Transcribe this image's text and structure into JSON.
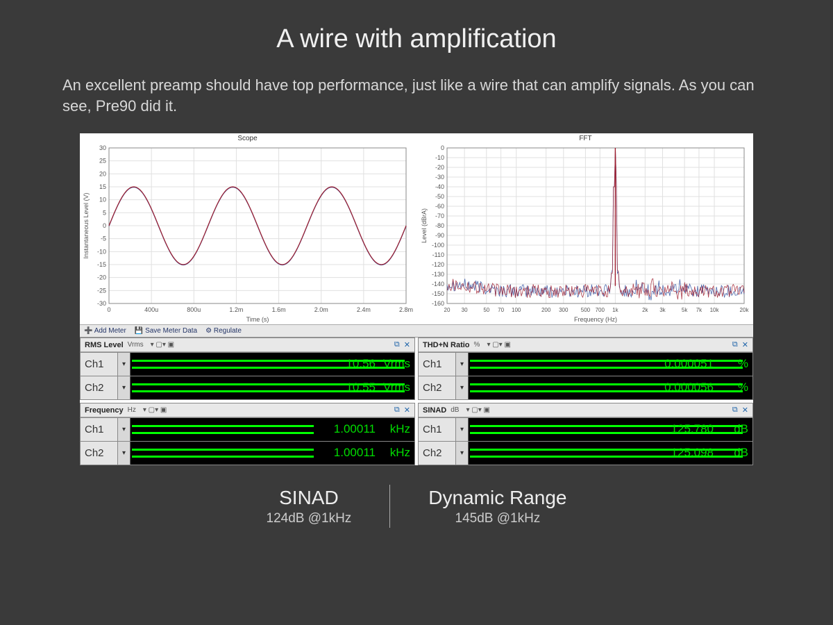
{
  "title": "A wire with amplification",
  "subtitle": "An excellent preamp should have top performance, just like a wire that can amplify signals. As you can see, Pre90 did it.",
  "scope_chart": {
    "type": "line",
    "title": "Scope",
    "xlabel": "Time (s)",
    "ylabel": "Instantaneous Level (V)",
    "ylim": [
      -30,
      30
    ],
    "ytick_step": 5,
    "yticks": [
      "-30",
      "-25",
      "-20",
      "-15",
      "-10",
      "-5",
      "0",
      "5",
      "10",
      "15",
      "20",
      "25",
      "30"
    ],
    "xticks": [
      "0",
      "400u",
      "800u",
      "1.2m",
      "1.6m",
      "2.0m",
      "2.4m",
      "2.8m"
    ],
    "xlim": [
      0,
      0.003
    ],
    "amplitude": 15,
    "frequency_hz": 1000,
    "line_colors": [
      "#a02030",
      "#3050a0"
    ],
    "background_color": "#ffffff",
    "grid_color": "#e0e0e0",
    "axis_color": "#888888",
    "font_size": 9
  },
  "fft_chart": {
    "type": "line",
    "title": "FFT",
    "xlabel": "Frequency (Hz)",
    "ylabel": "Level (dBrA)",
    "ylim": [
      -160,
      0
    ],
    "ytick_step": 10,
    "yticks": [
      "0",
      "-10",
      "-20",
      "-30",
      "-40",
      "-50",
      "-60",
      "-70",
      "-80",
      "-90",
      "-100",
      "-110",
      "-120",
      "-130",
      "-140",
      "-150",
      "-160"
    ],
    "scale": "log",
    "xticks": [
      "20",
      "30",
      "50",
      "70",
      "100",
      "200",
      "300",
      "500",
      "700",
      "1k",
      "2k",
      "3k",
      "5k",
      "7k",
      "10k",
      "20k"
    ],
    "xlim": [
      20,
      20000
    ],
    "fundamental_hz": 1000,
    "fundamental_level_db": 0,
    "noise_floor_db": -150,
    "harmonic_levels_db": [
      -135,
      -140,
      -145
    ],
    "line_colors": [
      "#a02030",
      "#3050a0"
    ],
    "background_color": "#ffffff",
    "grid_color": "#e0e0e0",
    "axis_color": "#888888",
    "font_size": 9
  },
  "toolbar": {
    "add_meter": "Add Meter",
    "save_data": "Save Meter Data",
    "regulate": "Regulate"
  },
  "meters": {
    "bar_color": "#00ff00",
    "bar_bg": "#000000",
    "value_color": "#00dd00",
    "panels": [
      {
        "title": "RMS Level",
        "unit_label": "Vrms",
        "values": [
          {
            "ch": "Ch1",
            "value": "10.56",
            "unit": "Vrms",
            "bar_ratio": 0.96
          },
          {
            "ch": "Ch2",
            "value": "10.55",
            "unit": "Vrms",
            "bar_ratio": 0.96
          }
        ]
      },
      {
        "title": "THD+N Ratio",
        "unit_label": "%",
        "values": [
          {
            "ch": "Ch1",
            "value": "0.000051",
            "unit": "%",
            "bar_ratio": 0.96
          },
          {
            "ch": "Ch2",
            "value": "0.000056",
            "unit": "%",
            "bar_ratio": 0.96
          }
        ]
      },
      {
        "title": "Frequency",
        "unit_label": "Hz",
        "values": [
          {
            "ch": "Ch1",
            "value": "1.00011",
            "unit": "kHz",
            "bar_ratio": 0.64
          },
          {
            "ch": "Ch2",
            "value": "1.00011",
            "unit": "kHz",
            "bar_ratio": 0.64
          }
        ]
      },
      {
        "title": "SINAD",
        "unit_label": "dB",
        "values": [
          {
            "ch": "Ch1",
            "value": "125.780",
            "unit": "dB",
            "bar_ratio": 0.96
          },
          {
            "ch": "Ch2",
            "value": "125.098",
            "unit": "dB",
            "bar_ratio": 0.96
          }
        ]
      }
    ]
  },
  "summary": {
    "left": {
      "label": "SINAD",
      "value": "124dB @1kHz"
    },
    "right": {
      "label": "Dynamic Range",
      "value": "145dB @1kHz"
    }
  }
}
